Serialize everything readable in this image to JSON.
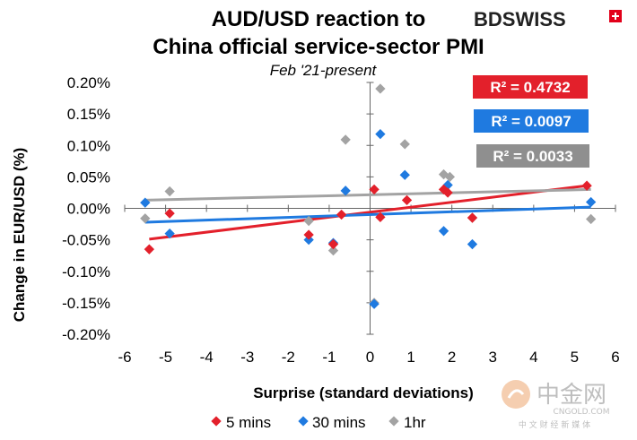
{
  "brand": {
    "name": "BDSWISS",
    "accent_color": "#e2001a"
  },
  "watermark": {
    "main": "中金网",
    "domain": "CNGOLD.COM",
    "tagline": "中 文 财 经 新 媒 体"
  },
  "chart_data": {
    "type": "scatter",
    "title_line1": "AUD/USD reaction to",
    "title_line2": "China official service-sector PMI",
    "subtitle": "Feb '21-present",
    "xlabel": "Surprise (standard deviations)",
    "ylabel": "Change in EUR/USD  (%)",
    "xlim": [
      -6,
      6
    ],
    "ylim": [
      -0.2,
      0.2
    ],
    "x_ticks": [
      "-6",
      "-5",
      "-4",
      "-3",
      "-2",
      "-1",
      "0",
      "1",
      "2",
      "3",
      "4",
      "5",
      "6"
    ],
    "y_ticks": [
      "0.20%",
      "0.15%",
      "0.10%",
      "0.05%",
      "0.00%",
      "-0.05%",
      "-0.10%",
      "-0.15%",
      "-0.20%"
    ],
    "legend_position": "bottom",
    "series": [
      {
        "name": "5 mins",
        "color": "#e3202b",
        "points": [
          [
            -5.4,
            -0.065
          ],
          [
            -4.9,
            -0.008
          ],
          [
            -1.5,
            -0.042
          ],
          [
            -0.9,
            -0.057
          ],
          [
            -0.7,
            -0.01
          ],
          [
            0.1,
            0.03
          ],
          [
            0.25,
            -0.014
          ],
          [
            0.9,
            0.013
          ],
          [
            1.8,
            0.03
          ],
          [
            1.9,
            0.025
          ],
          [
            2.5,
            -0.015
          ],
          [
            5.3,
            0.036
          ]
        ],
        "trend": [
          [
            -5.4,
            -0.049
          ],
          [
            5.3,
            0.036
          ]
        ],
        "r2": "R² = 0.4732"
      },
      {
        "name": "30 mins",
        "color": "#1f7ae0",
        "points": [
          [
            -5.5,
            0.009
          ],
          [
            -4.9,
            -0.04
          ],
          [
            -1.5,
            -0.05
          ],
          [
            -0.9,
            -0.055
          ],
          [
            -0.6,
            0.028
          ],
          [
            0.1,
            -0.152
          ],
          [
            0.25,
            0.118
          ],
          [
            0.85,
            0.053
          ],
          [
            1.8,
            -0.036
          ],
          [
            1.9,
            0.037
          ],
          [
            2.5,
            -0.057
          ],
          [
            5.4,
            0.01
          ]
        ],
        "trend": [
          [
            -5.5,
            -0.022
          ],
          [
            5.4,
            0.002
          ]
        ],
        "r2": "R² = 0.0097"
      },
      {
        "name": "1hr",
        "color": "#a3a3a3",
        "points": [
          [
            -5.5,
            -0.016
          ],
          [
            -4.9,
            0.027
          ],
          [
            -1.5,
            -0.02
          ],
          [
            -0.9,
            -0.067
          ],
          [
            -0.6,
            0.109
          ],
          [
            0.1,
            -0.15
          ],
          [
            0.25,
            0.19
          ],
          [
            0.85,
            0.102
          ],
          [
            1.8,
            0.054
          ],
          [
            1.95,
            0.05
          ],
          [
            2.5,
            -0.015
          ],
          [
            5.4,
            -0.017
          ]
        ],
        "trend": [
          [
            -5.5,
            0.013
          ],
          [
            5.4,
            0.03
          ]
        ],
        "r2": "R² = 0.0033"
      }
    ]
  }
}
